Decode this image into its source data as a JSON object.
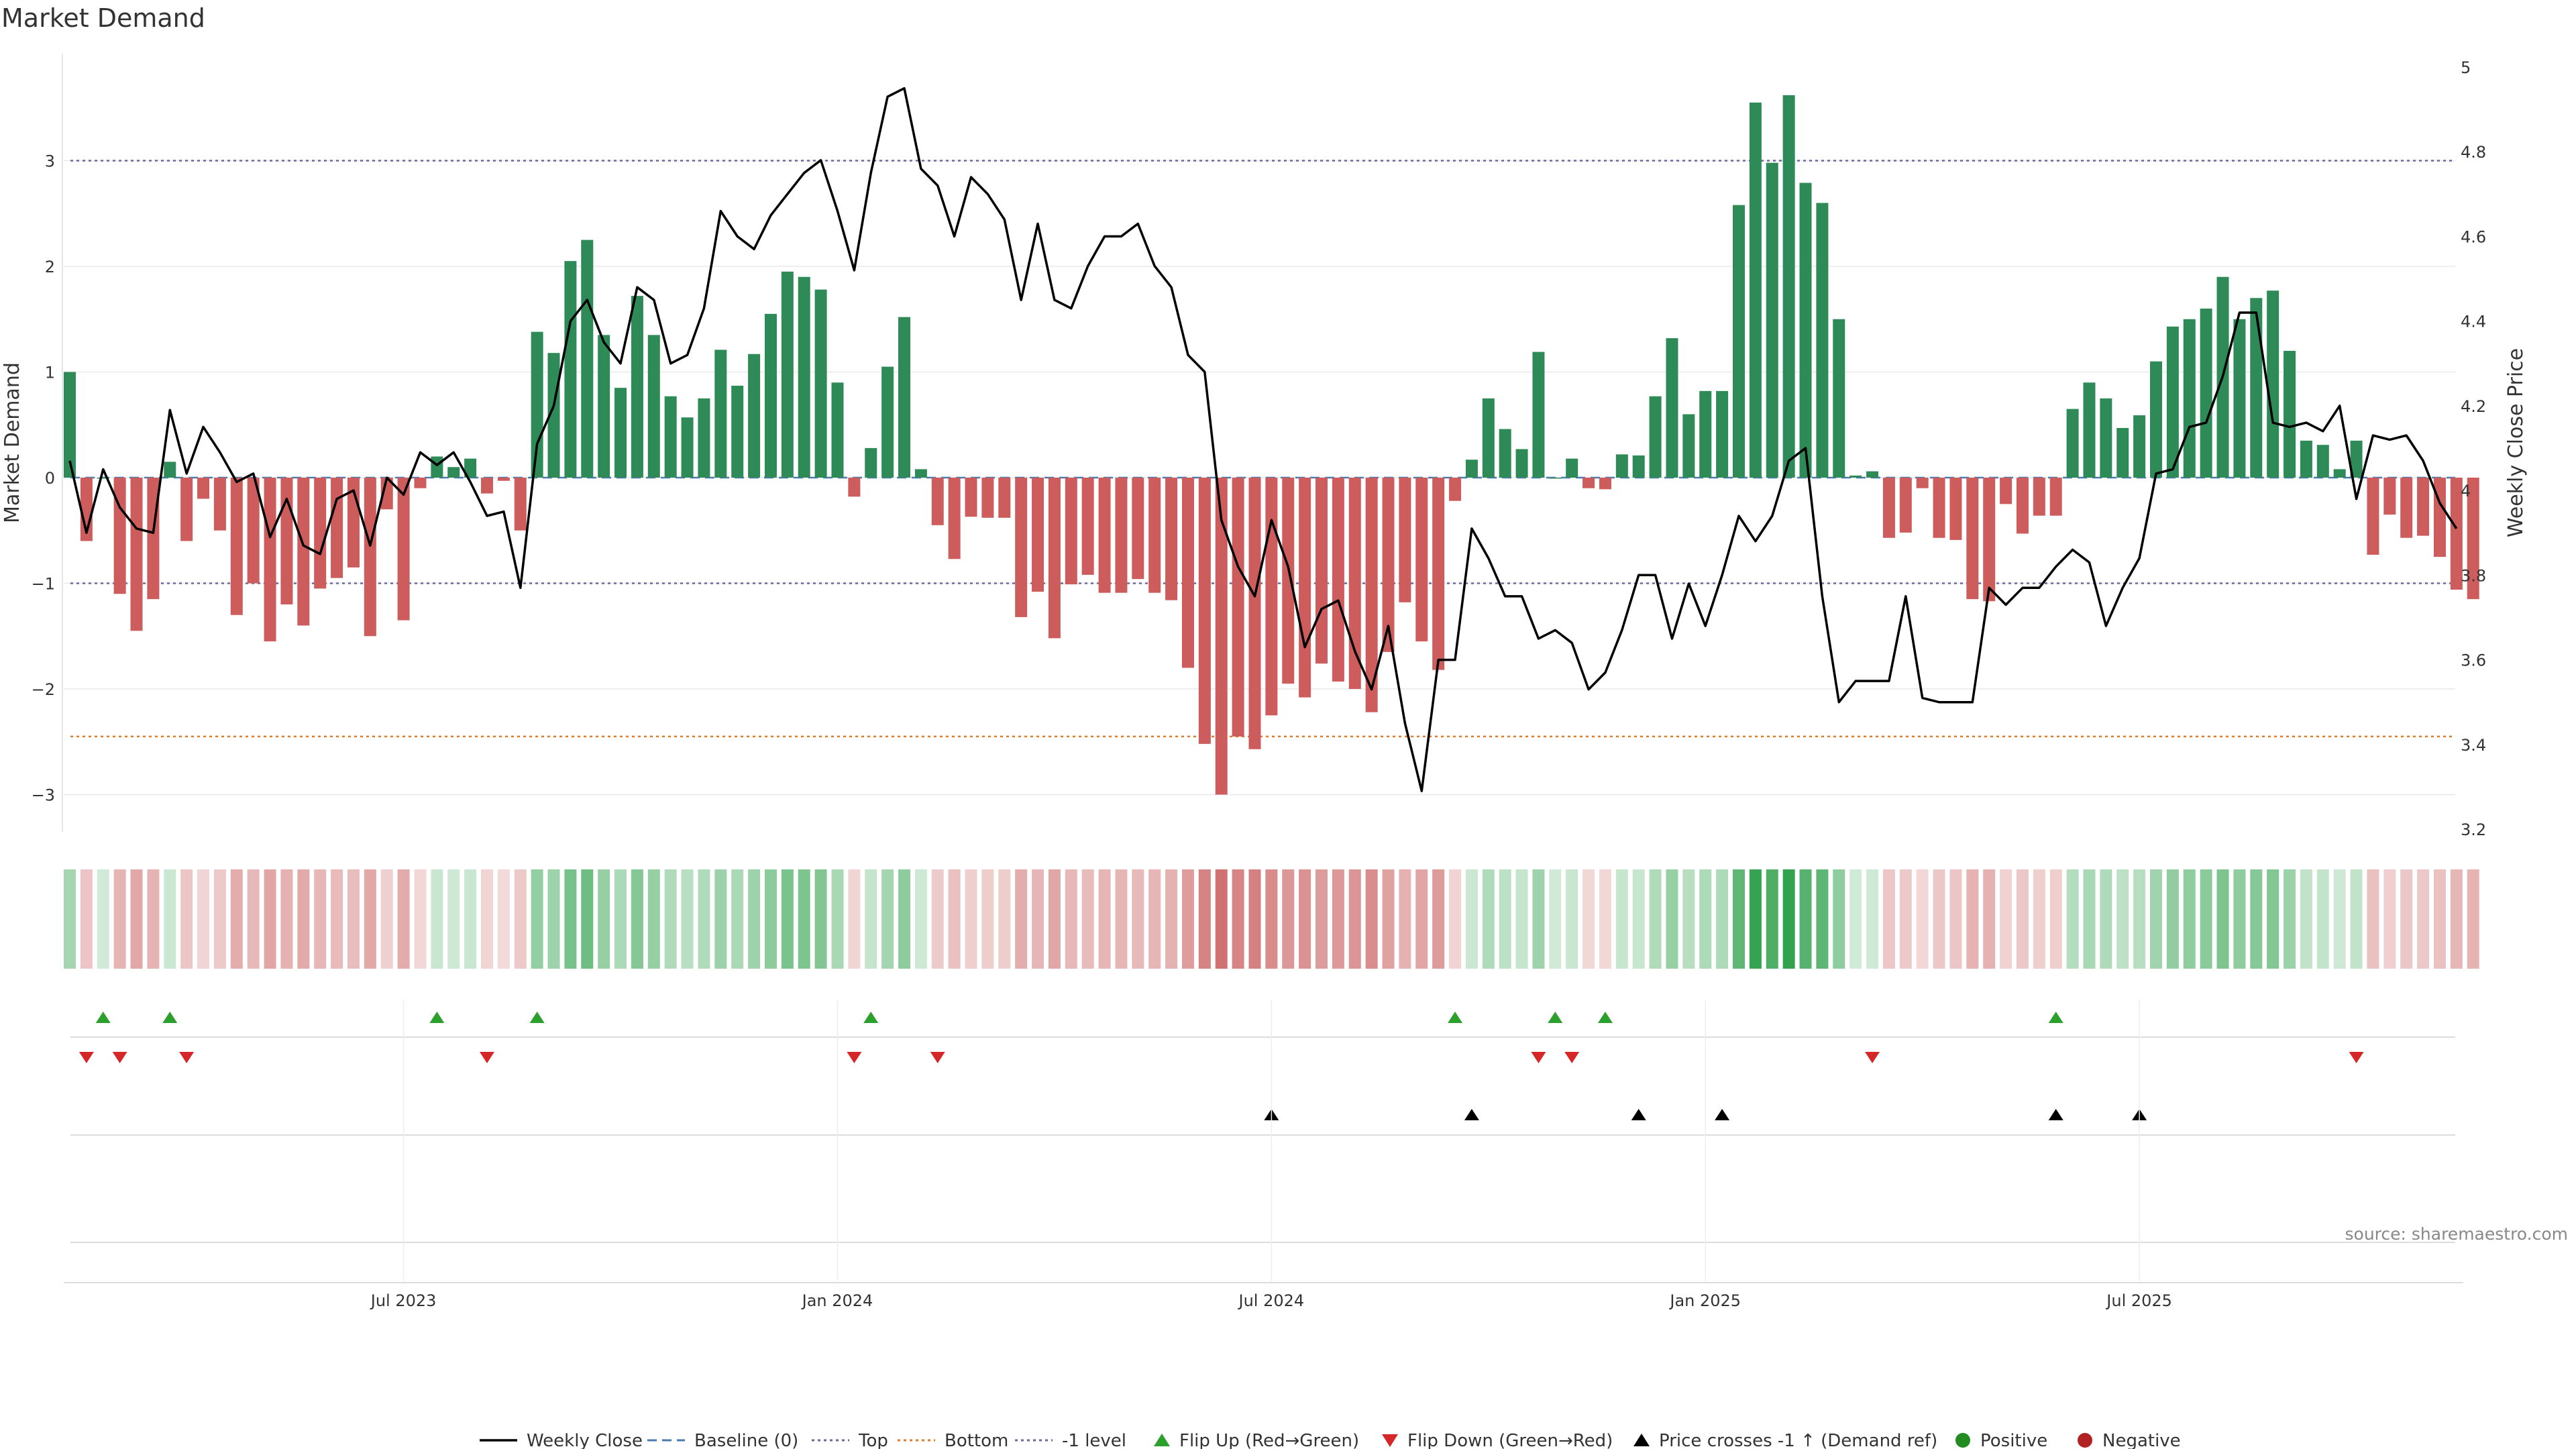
{
  "chart_data": {
    "type": "bar",
    "title": "Market Demand",
    "ylabel": "Market Demand",
    "y2label": "Weekly Close Price",
    "ylim": [
      -3.3,
      4.0
    ],
    "y2lim": [
      3.2,
      5.0
    ],
    "yticks": [
      -3,
      -2,
      -1,
      0,
      1,
      2,
      3
    ],
    "yticklabels": [
      "−3",
      "−2",
      "−1",
      "0",
      "1",
      "2",
      "3"
    ],
    "y2ticks": [
      3.2,
      3.4,
      3.6,
      3.8,
      4,
      4.2,
      4.4,
      4.6,
      4.8,
      5
    ],
    "y2ticklabels": [
      "3.2",
      "3.4",
      "3.6",
      "3.8",
      "4",
      "4.2",
      "4.4",
      "4.6",
      "4.8",
      "5"
    ],
    "x_week_range": [
      0,
      143
    ],
    "xticks": [
      {
        "week": 20,
        "label": "Jul 2023"
      },
      {
        "week": 46,
        "label": "Jan 2024"
      },
      {
        "week": 72,
        "label": "Jul 2024"
      },
      {
        "week": 98,
        "label": "Jan 2025"
      },
      {
        "week": 124,
        "label": "Jul 2025"
      }
    ],
    "levels": {
      "top": 3.0,
      "bottom": -2.45,
      "minus_one": -1.0,
      "baseline": 0
    },
    "demand": [
      1.0,
      -0.6,
      0.0,
      -1.1,
      -1.45,
      -1.15,
      0.15,
      -0.6,
      -0.2,
      -0.5,
      -1.3,
      -1.0,
      -1.55,
      -1.2,
      -1.4,
      -1.05,
      -0.95,
      -0.85,
      -1.5,
      -0.3,
      -1.35,
      -0.1,
      0.2,
      0.1,
      0.18,
      -0.15,
      -0.03,
      -0.5,
      1.38,
      1.18,
      2.05,
      2.25,
      1.35,
      0.85,
      1.72,
      1.35,
      0.77,
      0.57,
      0.75,
      1.21,
      0.87,
      1.17,
      1.55,
      1.95,
      1.9,
      1.78,
      0.9,
      -0.18,
      0.28,
      1.05,
      1.52,
      0.08,
      -0.45,
      -0.77,
      -0.37,
      -0.38,
      -0.38,
      -1.32,
      -1.08,
      -1.52,
      -1.01,
      -0.92,
      -1.09,
      -1.09,
      -0.96,
      -1.09,
      -1.16,
      -1.8,
      -2.52,
      -3.0,
      -2.45,
      -2.57,
      -2.25,
      -1.95,
      -2.08,
      -1.76,
      -1.93,
      -2.0,
      -2.22,
      -1.65,
      -1.18,
      -1.55,
      -1.82,
      -0.22,
      0.17,
      0.75,
      0.46,
      0.27,
      1.19,
      0.0,
      0.18,
      -0.1,
      -0.11,
      0.22,
      0.21,
      0.77,
      1.32,
      0.6,
      0.82,
      0.82,
      2.58,
      3.55,
      2.98,
      3.62,
      2.79,
      2.6,
      1.5,
      0.02,
      0.06,
      -0.57,
      -0.52,
      -0.1,
      -0.57,
      -0.59,
      -1.15,
      -1.17,
      -0.25,
      -0.53,
      -0.36,
      -0.36,
      0.65,
      0.9,
      0.75,
      0.47,
      0.59,
      1.1,
      1.43,
      1.5,
      1.6,
      1.9,
      1.5,
      1.7,
      1.77,
      1.2,
      0.35,
      0.31,
      0.08,
      0.35,
      -0.73,
      -0.35,
      -0.57,
      -0.55,
      -0.75,
      -1.06,
      -1.15
    ],
    "weekly_close": [
      4.07,
      3.9,
      4.05,
      3.96,
      3.91,
      3.9,
      4.19,
      4.04,
      4.15,
      4.09,
      4.02,
      4.04,
      3.89,
      3.98,
      3.87,
      3.85,
      3.98,
      4.0,
      3.87,
      4.03,
      3.99,
      4.09,
      4.06,
      4.09,
      4.02,
      3.94,
      3.95,
      3.77,
      4.11,
      4.2,
      4.4,
      4.45,
      4.35,
      4.3,
      4.48,
      4.45,
      4.3,
      4.32,
      4.43,
      4.66,
      4.6,
      4.57,
      4.65,
      4.7,
      4.75,
      4.78,
      4.66,
      4.52,
      4.75,
      4.93,
      4.95,
      4.76,
      4.72,
      4.6,
      4.74,
      4.7,
      4.64,
      4.45,
      4.63,
      4.45,
      4.43,
      4.53,
      4.6,
      4.6,
      4.63,
      4.53,
      4.48,
      4.32,
      4.28,
      3.93,
      3.82,
      3.75,
      3.93,
      3.82,
      3.63,
      3.72,
      3.74,
      3.62,
      3.53,
      3.68,
      3.45,
      3.29,
      3.6,
      3.6,
      3.91,
      3.84,
      3.75,
      3.75,
      3.65,
      3.67,
      3.64,
      3.53,
      3.57,
      3.67,
      3.8,
      3.8,
      3.65,
      3.78,
      3.68,
      3.8,
      3.94,
      3.88,
      3.94,
      4.07,
      4.1,
      3.75,
      3.5,
      3.55,
      3.55,
      3.55,
      3.75,
      3.51,
      3.5,
      3.5,
      3.5,
      3.77,
      3.73,
      3.77,
      3.77,
      3.82,
      3.86,
      3.83,
      3.68,
      3.77,
      3.84,
      4.04,
      4.05,
      4.15,
      4.16,
      4.27,
      4.42,
      4.42,
      4.16,
      4.15,
      4.16,
      4.14,
      4.2,
      3.98,
      4.13,
      4.12,
      4.13,
      4.07,
      3.97,
      3.91
    ],
    "flip_up_weeks": [
      2,
      6,
      22,
      28,
      48,
      83,
      89,
      92,
      119
    ],
    "flip_down_weeks": [
      1,
      3,
      7,
      25,
      47,
      52,
      88,
      90,
      108,
      137
    ],
    "price_cross_weeks": [
      72,
      84,
      94,
      99,
      119,
      124
    ],
    "legend_position": "bottom",
    "legend": [
      {
        "key": "weekly",
        "label": "Weekly Close"
      },
      {
        "key": "baseline",
        "label": "Baseline (0)"
      },
      {
        "key": "top",
        "label": "Top"
      },
      {
        "key": "bottom",
        "label": "Bottom"
      },
      {
        "key": "minus1",
        "label": "-1 level"
      },
      {
        "key": "flipup",
        "label": "Flip Up (Red→Green)"
      },
      {
        "key": "flipdown",
        "label": "Flip Down (Green→Red)"
      },
      {
        "key": "cross",
        "label": "Price crosses -1 ↑ (Demand ref)"
      },
      {
        "key": "positive",
        "label": "Positive"
      },
      {
        "key": "negative",
        "label": "Negative"
      }
    ],
    "source": "source: sharemaestro.com",
    "colors": {
      "positive": "#2e8b57",
      "negative": "#cd5c5c",
      "line": "#000000",
      "top": "#6a6a9a",
      "bottom": "#e07b2a",
      "minus1": "#6a6a9a",
      "baseline": "#4a7ab0",
      "flipup": "#2ca02c",
      "flipdown": "#d62728",
      "cross": "#000000",
      "legend_positive": "#228b22",
      "legend_negative": "#b22222",
      "grid": "#e8e8e8"
    }
  }
}
